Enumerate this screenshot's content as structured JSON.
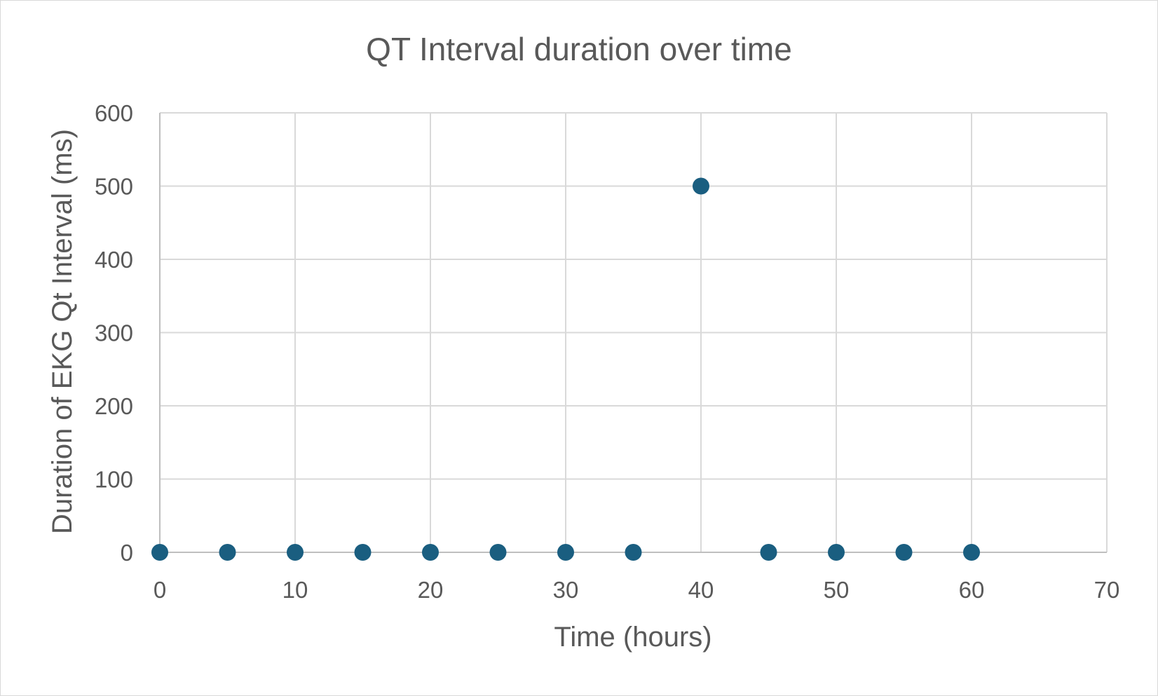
{
  "chart_data": {
    "type": "scatter",
    "title": "QT Interval duration over time",
    "xlabel": "Time (hours)",
    "ylabel": "Duration of EKG Qt Interval (ms)",
    "xlim": [
      0,
      70
    ],
    "ylim": [
      0,
      600
    ],
    "x_ticks": [
      0,
      10,
      20,
      30,
      40,
      50,
      60,
      70
    ],
    "y_ticks": [
      0,
      100,
      200,
      300,
      400,
      500,
      600
    ],
    "grid": true,
    "legend": "none",
    "marker_color": "#1a5e80",
    "series": [
      {
        "x": [
          0,
          5,
          10,
          15,
          20,
          25,
          30,
          35,
          40,
          45,
          50,
          55,
          60
        ],
        "y": [
          0,
          0,
          0,
          0,
          0,
          0,
          0,
          0,
          500,
          0,
          0,
          0,
          0
        ]
      }
    ]
  }
}
